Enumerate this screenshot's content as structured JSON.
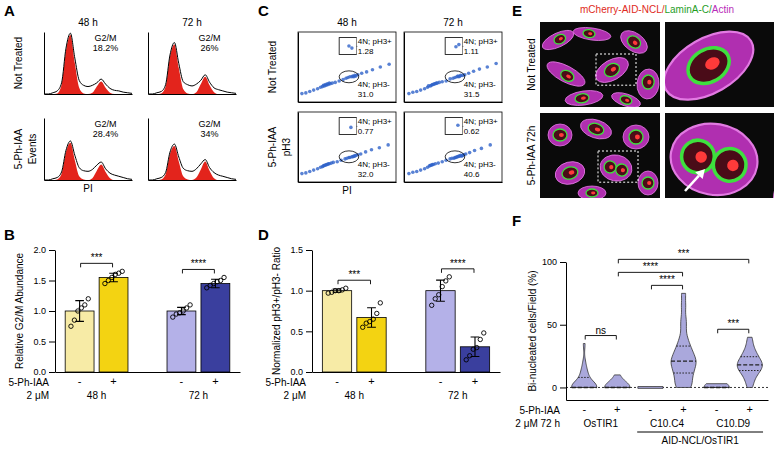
{
  "chart_data": [
    {
      "type": "histogram",
      "panel": "A",
      "title": "48 h",
      "row_label": "Not Treated",
      "x": [
        0,
        5,
        10,
        15,
        20,
        25,
        30,
        35,
        40,
        45,
        50,
        55,
        60,
        65,
        70,
        75,
        80,
        85,
        90,
        95,
        100
      ],
      "series": [
        {
          "type": "area",
          "color": "#e3241c",
          "values": [
            0,
            0,
            0,
            1,
            15,
            70,
            95,
            50,
            10,
            1,
            0,
            2,
            12,
            20,
            10,
            2,
            0,
            0,
            0,
            0,
            0
          ]
        },
        {
          "type": "line",
          "color": "#000000",
          "values": [
            0,
            0,
            2,
            5,
            18,
            74,
            98,
            58,
            22,
            14,
            12,
            14,
            18,
            24,
            16,
            9,
            6,
            5,
            3,
            2,
            1
          ]
        }
      ],
      "annotations": [
        "G2/M",
        "18.2%"
      ],
      "xlim": [
        0,
        100
      ],
      "ylim": [
        0,
        100
      ],
      "tick_labels": false
    },
    {
      "type": "histogram",
      "title": "72 h",
      "x": [
        0,
        5,
        10,
        15,
        20,
        25,
        30,
        35,
        40,
        45,
        50,
        55,
        60,
        65,
        70,
        75,
        80,
        85,
        90,
        95,
        100
      ],
      "series": [
        {
          "type": "area",
          "color": "#e3241c",
          "values": [
            0,
            0,
            0,
            1,
            12,
            60,
            80,
            42,
            8,
            1,
            0,
            3,
            16,
            28,
            14,
            3,
            0,
            0,
            0,
            0,
            0
          ]
        },
        {
          "type": "line",
          "color": "#000000",
          "values": [
            0,
            0,
            2,
            4,
            15,
            63,
            83,
            49,
            20,
            15,
            13,
            16,
            22,
            31,
            19,
            10,
            7,
            5,
            3,
            2,
            1
          ]
        }
      ],
      "annotations": [
        "G2/M",
        "26%"
      ],
      "xlim": [
        0,
        100
      ],
      "ylim": [
        0,
        100
      ],
      "tick_labels": false
    },
    {
      "type": "histogram",
      "row_label": "5-Ph-IAA",
      "x_label": "PI",
      "y_label": "Events",
      "x": [
        0,
        5,
        10,
        15,
        20,
        25,
        30,
        35,
        40,
        45,
        50,
        55,
        60,
        65,
        70,
        75,
        80,
        85,
        90,
        95,
        100
      ],
      "series": [
        {
          "type": "area",
          "color": "#e3241c",
          "values": [
            0,
            0,
            0,
            1,
            10,
            45,
            60,
            32,
            6,
            1,
            0,
            3,
            15,
            25,
            13,
            3,
            0,
            0,
            0,
            0,
            0
          ]
        },
        {
          "type": "line",
          "color": "#000000",
          "values": [
            0,
            0,
            2,
            4,
            13,
            48,
            63,
            40,
            20,
            15,
            14,
            17,
            24,
            29,
            18,
            11,
            8,
            6,
            4,
            2,
            1
          ]
        }
      ],
      "annotations": [
        "G2/M",
        "28.4%"
      ],
      "xlim": [
        0,
        100
      ],
      "ylim": [
        0,
        100
      ],
      "tick_labels": false
    },
    {
      "type": "histogram",
      "x": [
        0,
        5,
        10,
        15,
        20,
        25,
        30,
        35,
        40,
        45,
        50,
        55,
        60,
        65,
        70,
        75,
        80,
        85,
        90,
        95,
        100
      ],
      "series": [
        {
          "type": "area",
          "color": "#e3241c",
          "values": [
            0,
            0,
            0,
            1,
            9,
            42,
            55,
            30,
            6,
            1,
            0,
            4,
            17,
            30,
            15,
            3,
            0,
            0,
            0,
            0,
            0
          ]
        },
        {
          "type": "line",
          "color": "#000000",
          "values": [
            0,
            0,
            2,
            4,
            12,
            45,
            58,
            37,
            19,
            15,
            14,
            18,
            26,
            33,
            20,
            12,
            8,
            6,
            4,
            2,
            1
          ]
        }
      ],
      "annotations": [
        "G2/M",
        "34%"
      ],
      "xlim": [
        0,
        100
      ],
      "ylim": [
        0,
        100
      ],
      "tick_labels": false
    },
    {
      "type": "bar",
      "panel": "B",
      "y_label": "Relative G2/M Abundance",
      "categories": [
        "-",
        "+",
        "-",
        "+"
      ],
      "values": [
        1.0,
        1.55,
        1.0,
        1.45
      ],
      "errors": [
        0.17,
        0.07,
        0.06,
        0.07
      ],
      "points": [
        [
          0.75,
          0.85,
          1.0,
          1.05,
          1.1,
          1.2
        ],
        [
          1.45,
          1.5,
          1.55,
          1.6,
          1.62,
          1.65
        ],
        [
          0.9,
          0.95,
          0.97,
          1.0,
          1.05,
          1.1
        ],
        [
          1.38,
          1.42,
          1.45,
          1.48,
          1.5,
          1.55
        ]
      ],
      "colors": [
        "#f7eba6",
        "#f3d312",
        "#b4b1e8",
        "#3a3f9e"
      ],
      "ylim": [
        0,
        2
      ],
      "yticks": [
        {
          "value": 0,
          "label": "0.0"
        },
        0.5,
        {
          "value": 1,
          "label": "1.0"
        },
        1.5,
        {
          "value": 2,
          "label": "2.0"
        }
      ],
      "groups": [
        "48 h",
        "72 h"
      ],
      "x_row_label": "5-Ph-IAA",
      "x_row_sublabel": "2 μM",
      "comparisons": [
        {
          "pair": [
            0,
            1
          ],
          "label": "***"
        },
        {
          "pair": [
            2,
            3
          ],
          "label": "****"
        }
      ]
    },
    {
      "type": "scatter",
      "panel": "C",
      "title": "48 h",
      "row_label": "Not Treated",
      "x": [
        4,
        8,
        12,
        16,
        20,
        23,
        25,
        26,
        27,
        28,
        29,
        30,
        31,
        32,
        33,
        35,
        38,
        42,
        46,
        49,
        51,
        53,
        55,
        56,
        57,
        58,
        59,
        61,
        65,
        70,
        76,
        84,
        93,
        52,
        55
      ],
      "values": [
        12,
        13,
        15,
        17,
        19,
        21,
        22,
        24,
        23,
        25,
        24,
        26,
        25,
        27,
        26,
        27,
        28,
        30,
        32,
        34,
        35,
        36,
        36,
        37,
        36,
        38,
        37,
        39,
        41,
        43,
        46,
        50,
        54,
        80,
        77
      ],
      "color": "#2f63c9",
      "xlim": [
        0,
        100
      ],
      "ylim": [
        0,
        100
      ],
      "tick_labels": false,
      "data_labels": true,
      "gates": {
        "labels": [
          "4N; pH3+",
          "4N; pH3-"
        ],
        "values": [
          1.28,
          31.0
        ],
        "value_labels": [
          "1.28",
          "31.0"
        ]
      }
    },
    {
      "type": "scatter",
      "title": "72 h",
      "x": [
        5,
        9,
        13,
        17,
        21,
        24,
        25,
        27,
        28,
        29,
        30,
        31,
        32,
        33,
        34,
        36,
        39,
        43,
        47,
        50,
        52,
        54,
        55,
        56,
        57,
        58,
        60,
        62,
        66,
        71,
        77,
        85,
        94,
        53,
        56
      ],
      "values": [
        12,
        14,
        15,
        17,
        19,
        21,
        23,
        23,
        24,
        25,
        25,
        26,
        26,
        27,
        27,
        28,
        29,
        30,
        33,
        34,
        35,
        36,
        37,
        36,
        37,
        38,
        38,
        39,
        41,
        44,
        47,
        50,
        55,
        79,
        82
      ],
      "color": "#2f63c9",
      "xlim": [
        0,
        100
      ],
      "ylim": [
        0,
        100
      ],
      "tick_labels": false,
      "data_labels": true,
      "gates": {
        "labels": [
          "4N; pH3+",
          "4N; pH3-"
        ],
        "values": [
          1.11,
          31.5
        ],
        "value_labels": [
          "1.11",
          "31.5"
        ]
      }
    },
    {
      "type": "scatter",
      "row_label": "5-Ph-IAA",
      "x_label": "PI",
      "y_label": "pH3",
      "x": [
        4,
        8,
        12,
        16,
        20,
        23,
        25,
        26,
        27,
        28,
        29,
        30,
        31,
        32,
        34,
        36,
        40,
        44,
        48,
        50,
        52,
        53,
        55,
        56,
        57,
        58,
        59,
        61,
        64,
        69,
        75,
        83,
        92,
        54
      ],
      "values": [
        12,
        13,
        15,
        17,
        19,
        21,
        22,
        23,
        24,
        24,
        25,
        25,
        26,
        26,
        27,
        28,
        29,
        31,
        33,
        34,
        35,
        35,
        36,
        36,
        37,
        37,
        38,
        39,
        40,
        43,
        46,
        49,
        53,
        78
      ],
      "color": "#2f63c9",
      "xlim": [
        0,
        100
      ],
      "ylim": [
        0,
        100
      ],
      "tick_labels": false,
      "data_labels": true,
      "gates": {
        "labels": [
          "4N; pH3+",
          "4N; pH3-"
        ],
        "values": [
          0.77,
          32.0
        ],
        "value_labels": [
          "0.77",
          "32.0"
        ]
      }
    },
    {
      "type": "scatter",
      "x": [
        5,
        9,
        13,
        17,
        21,
        24,
        26,
        27,
        28,
        29,
        30,
        32,
        35,
        39,
        43,
        47,
        49,
        51,
        52,
        53,
        54,
        55,
        56,
        57,
        58,
        59,
        60,
        61,
        63,
        67,
        72,
        79,
        88,
        55
      ],
      "values": [
        12,
        14,
        15,
        17,
        19,
        21,
        23,
        24,
        24,
        25,
        25,
        26,
        27,
        29,
        31,
        33,
        34,
        34,
        35,
        35,
        36,
        36,
        37,
        37,
        38,
        37,
        38,
        39,
        40,
        42,
        45,
        48,
        53,
        81
      ],
      "color": "#2f63c9",
      "xlim": [
        0,
        100
      ],
      "ylim": [
        0,
        100
      ],
      "tick_labels": false,
      "data_labels": true,
      "gates": {
        "labels": [
          "4N; pH3+",
          "4N; pH3-"
        ],
        "values": [
          0.62,
          40.6
        ],
        "value_labels": [
          "0.62",
          "40.6"
        ]
      }
    },
    {
      "type": "bar",
      "panel": "D",
      "y_label": "Normalized pH3+/pH3- Ratio",
      "categories": [
        "-",
        "+",
        "-",
        "+"
      ],
      "values": [
        1.0,
        0.67,
        1.0,
        0.31
      ],
      "errors": [
        0.02,
        0.12,
        0.13,
        0.12
      ],
      "points": [
        [
          0.97,
          0.98,
          1.0,
          1.0,
          1.01,
          1.03
        ],
        [
          0.55,
          0.6,
          0.62,
          0.65,
          0.72,
          0.85
        ],
        [
          0.82,
          0.9,
          0.95,
          1.05,
          1.12,
          1.17
        ],
        [
          0.15,
          0.2,
          0.28,
          0.3,
          0.4,
          0.48
        ]
      ],
      "colors": [
        "#f7eba6",
        "#f3d312",
        "#b4b1e8",
        "#3a3f9e"
      ],
      "ylim": [
        0,
        1.5
      ],
      "yticks": [
        {
          "value": 0,
          "label": "0.0"
        },
        0.5,
        {
          "value": 1,
          "label": "1.0"
        },
        1.5
      ],
      "groups": [
        "48 h",
        "72 h"
      ],
      "x_row_label": "5-Ph-IAA",
      "x_row_sublabel": "2 μM",
      "comparisons": [
        {
          "pair": [
            0,
            1
          ],
          "label": "***"
        },
        {
          "pair": [
            2,
            3
          ],
          "label": "****"
        }
      ]
    },
    {
      "type": "image",
      "panel": "E",
      "channels": [
        {
          "text": "mCherry-AID-NCL/",
          "color": "#e02a22"
        },
        {
          "text": "LaminA-C/",
          "color": "#1f9e1f"
        },
        {
          "text": "Actin",
          "color": "#b82bb8"
        }
      ],
      "row_labels": [
        "Not Treated",
        "5-Ph-IAA 72h"
      ]
    },
    {
      "type": "violin",
      "panel": "F",
      "y_label": "Bi-nucleated cells/Field (%)",
      "categories": [
        "-",
        "+",
        "-",
        "+",
        "-",
        "+"
      ],
      "points": [
        [
          0,
          0,
          0,
          0,
          0,
          0,
          0,
          0,
          0,
          0,
          0,
          0,
          0,
          4,
          6,
          8,
          10,
          12,
          15,
          20,
          35
        ],
        [
          0,
          0,
          0,
          0,
          0,
          0,
          0,
          0,
          0,
          0,
          0,
          0,
          0,
          0,
          5,
          8,
          10
        ],
        [
          0,
          0,
          0,
          0,
          0,
          0,
          0,
          0,
          0,
          0,
          0,
          0
        ],
        [
          0,
          0,
          2,
          5,
          8,
          10,
          12,
          14,
          16,
          18,
          20,
          20,
          22,
          24,
          25,
          28,
          30,
          32,
          36,
          40,
          48,
          55,
          65,
          75
        ],
        [
          0,
          0,
          0,
          0,
          0,
          0,
          0,
          0,
          0,
          0,
          3
        ],
        [
          0,
          4,
          8,
          10,
          12,
          14,
          15,
          16,
          17,
          18,
          18,
          20,
          21,
          22,
          24,
          26,
          28,
          30,
          35,
          40
        ]
      ],
      "color": "#aaa8dc",
      "ylim": [
        -10,
        100
      ],
      "yticks": [
        0,
        50,
        100
      ],
      "reference_line": 0,
      "groups": [
        "OsTIR1",
        "C10.C4",
        "C10.D9"
      ],
      "supergroup": {
        "label": "AID-NCL/OsTIR1",
        "groups": [
          1,
          2
        ]
      },
      "x_row_label": "5-Ph-IAA",
      "x_row_sublabel": "2 μM 72 h",
      "comparisons": [
        {
          "pair": [
            0,
            1
          ],
          "label": "ns"
        },
        {
          "pair": [
            1,
            5
          ],
          "label": "***"
        },
        {
          "pair": [
            1,
            3
          ],
          "label": "****"
        },
        {
          "pair": [
            2,
            3
          ],
          "label": "****"
        },
        {
          "pair": [
            4,
            5
          ],
          "label": "***"
        }
      ]
    }
  ]
}
